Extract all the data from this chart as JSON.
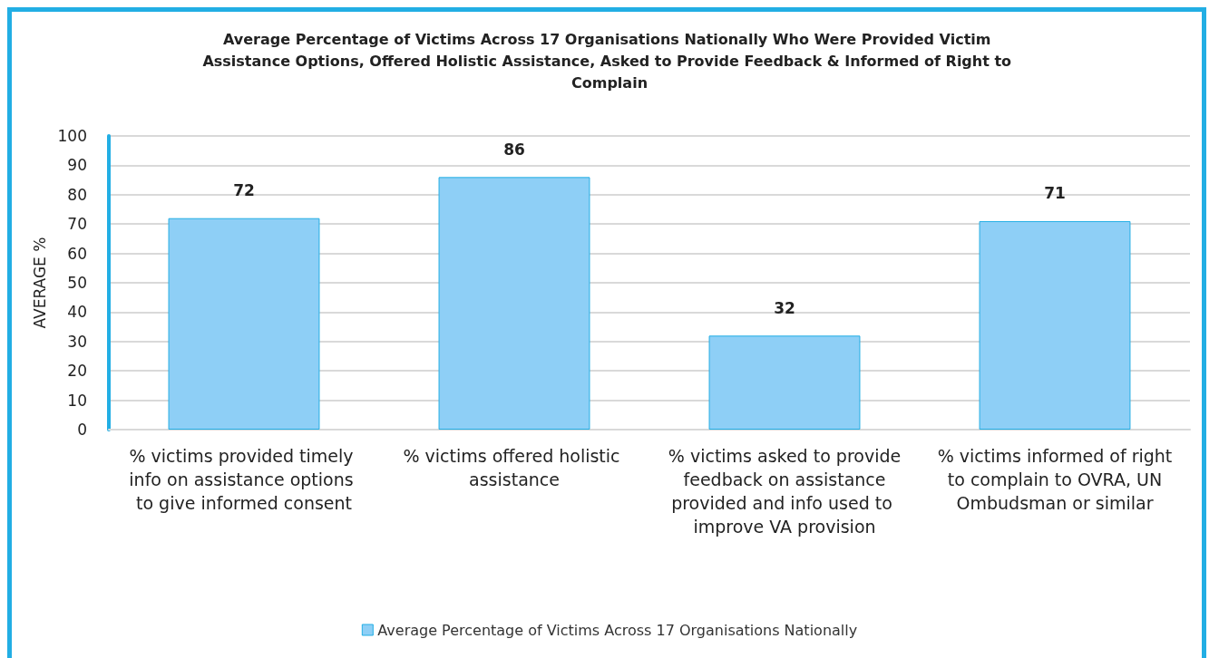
{
  "chart_data": {
    "type": "bar",
    "title": "Average Percentage of Victims Across 17 Organisations Nationally Who Were Provided Victim Assistance Options, Offered Holistic Assistance, Asked to Provide Feedback & Informed of Right to Complain",
    "ylabel": "AVERAGE %",
    "categories": [
      "% victims provided timely info on assistance options to give informed consent",
      "% victims offered holistic assistance",
      "% victims asked to provide feedback on assistance provided and info used to improve VA provision",
      "% victims informed of right to complain to OVRA, UN Ombudsman or similar"
    ],
    "series": [
      {
        "name": "Average Percentage of Victims Across 17 Organisations Nationally",
        "color": "#8ecff6",
        "values": [
          72,
          86,
          32,
          71
        ]
      }
    ],
    "ylim": [
      0,
      100
    ],
    "yticks": [
      0,
      10,
      20,
      30,
      40,
      50,
      60,
      70,
      80,
      90,
      100
    ],
    "grid": "y",
    "legend": "bottom",
    "data_labels": true
  }
}
